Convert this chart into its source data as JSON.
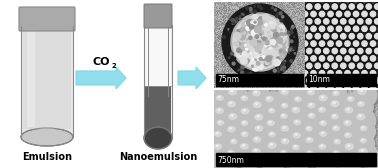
{
  "background_color": "#ffffff",
  "fig_width": 3.78,
  "fig_height": 1.68,
  "dpi": 100,
  "arrow_color": "#7fd8e8",
  "emulsion_label": {
    "text": "Emulsion",
    "fontsize": 7,
    "fontweight": "bold"
  },
  "nanoemulsion_label": {
    "text": "Nanoemulsion",
    "fontsize": 7,
    "fontweight": "bold"
  },
  "co2_label": {
    "text": "CO",
    "sub": "2",
    "fontsize": 8,
    "fontweight": "bold"
  },
  "scale_75nm": "75nm",
  "scale_10nm": "10nm",
  "scale_750nm": "750nm"
}
